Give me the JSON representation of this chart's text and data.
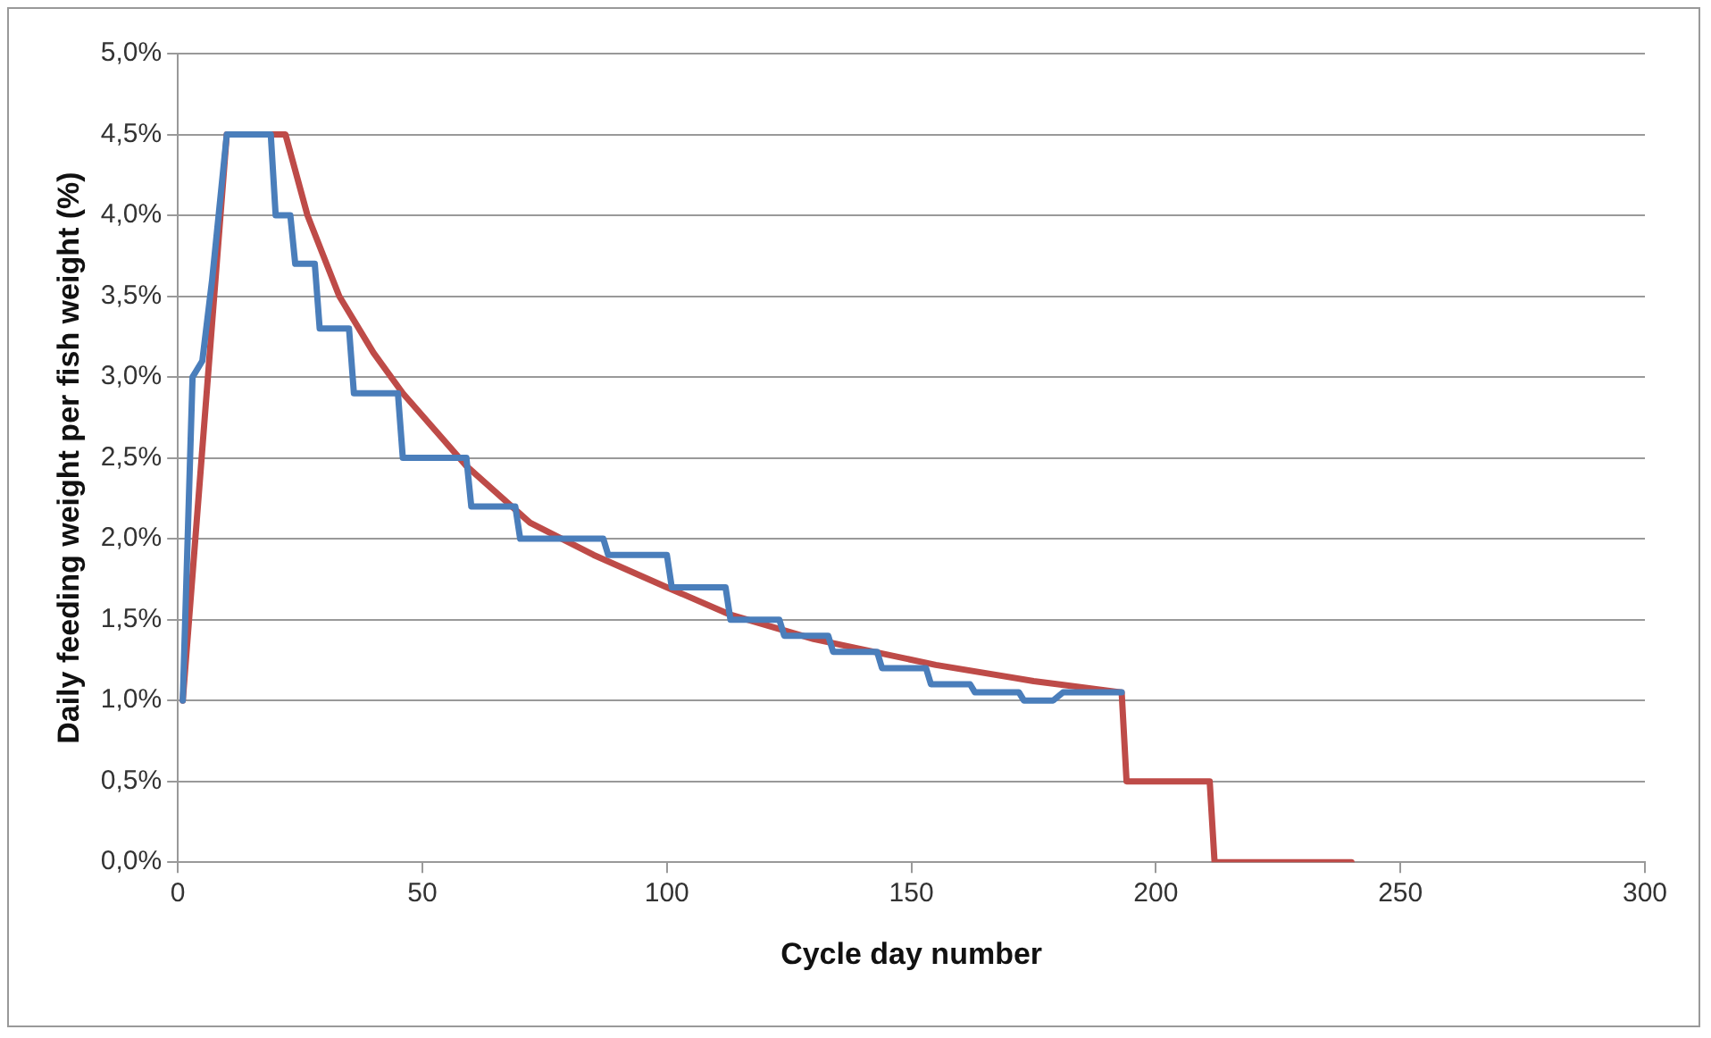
{
  "chart_data": {
    "type": "line",
    "xlabel": "Cycle day number",
    "ylabel": "Daily feeding weight per fish weight (%)",
    "xlim": [
      0,
      300
    ],
    "xticks": [
      0,
      50,
      100,
      150,
      200,
      250,
      300
    ],
    "ylim": [
      0,
      5
    ],
    "yticks": [
      {
        "value": 0,
        "label": "0,0%"
      },
      {
        "value": 0.5,
        "label": "0,5%"
      },
      {
        "value": 1,
        "label": "1,0%"
      },
      {
        "value": 1.5,
        "label": "1,5%"
      },
      {
        "value": 2,
        "label": "2,0%"
      },
      {
        "value": 2.5,
        "label": "2,5%"
      },
      {
        "value": 3,
        "label": "3,0%"
      },
      {
        "value": 3.5,
        "label": "3,5%"
      },
      {
        "value": 4,
        "label": "4,0%"
      },
      {
        "value": 4.5,
        "label": "4,5%"
      },
      {
        "value": 5,
        "label": "5,0%"
      }
    ],
    "grid": "y",
    "legend": false,
    "marker": "none",
    "line_style": "solid",
    "series": [
      {
        "color": "#4a7ebb",
        "x": [
          1,
          3,
          5,
          7,
          10,
          19,
          20,
          23,
          24,
          28,
          29,
          35,
          36,
          45,
          46,
          59,
          60,
          69,
          70,
          87,
          88,
          100,
          101,
          112,
          113,
          123,
          124,
          133,
          134,
          143,
          144,
          153,
          154,
          162,
          163,
          172,
          173,
          179,
          181,
          193
        ],
        "values": [
          1.0,
          3.0,
          3.1,
          3.6,
          4.5,
          4.5,
          4.0,
          4.0,
          3.7,
          3.7,
          3.3,
          3.3,
          2.9,
          2.9,
          2.5,
          2.5,
          2.2,
          2.2,
          2.0,
          2.0,
          1.9,
          1.9,
          1.7,
          1.7,
          1.5,
          1.5,
          1.4,
          1.4,
          1.3,
          1.3,
          1.2,
          1.2,
          1.1,
          1.1,
          1.05,
          1.05,
          1.0,
          1.0,
          1.05,
          1.05
        ]
      },
      {
        "color": "#be4b48",
        "x": [
          1,
          10,
          22,
          26.5,
          33,
          40,
          46,
          59,
          72,
          85,
          100,
          113,
          130,
          155,
          175,
          193,
          194,
          211,
          212,
          240
        ],
        "values": [
          1.0,
          4.5,
          4.5,
          4.0,
          3.5,
          3.15,
          2.9,
          2.45,
          2.1,
          1.9,
          1.7,
          1.53,
          1.38,
          1.22,
          1.12,
          1.05,
          0.5,
          0.5,
          0,
          0
        ]
      }
    ]
  }
}
